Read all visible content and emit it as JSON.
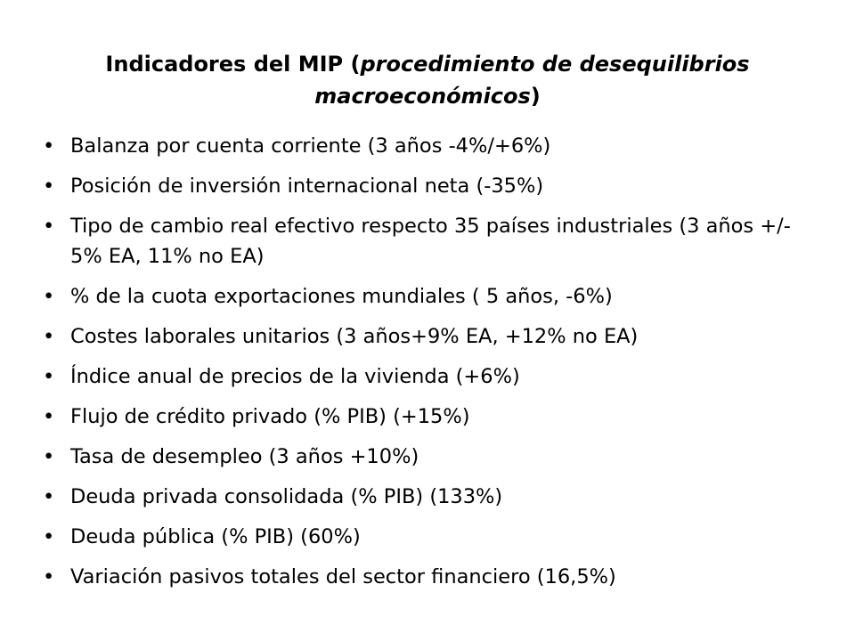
{
  "title": {
    "prefix": "Indicadores del MIP (",
    "italic": "procedimiento de desequilibrios macroeconómicos",
    "suffix": ")"
  },
  "bullet_glyph": "•",
  "bullets": [
    "Balanza por cuenta corriente (3 años -4%/+6%)",
    "Posición de inversión internacional neta (-35%)",
    "Tipo de cambio real efectivo respecto 35 países industriales (3 años +/- 5% EA, 11% no EA)",
    "% de la cuota  exportaciones mundiales ( 5 años, -6%)",
    "Costes laborales unitarios (3 años+9% EA, +12% no EA)",
    "Índice anual de precios de la vivienda (+6%)",
    "Flujo de crédito privado (% PIB) (+15%)",
    "Tasa de desempleo (3 años +10%)",
    "Deuda privada consolidada (% PIB) (133%)",
    "Deuda pública (% PIB) (60%)",
    "Variación pasivos totales del sector financiero (16,5%)"
  ]
}
